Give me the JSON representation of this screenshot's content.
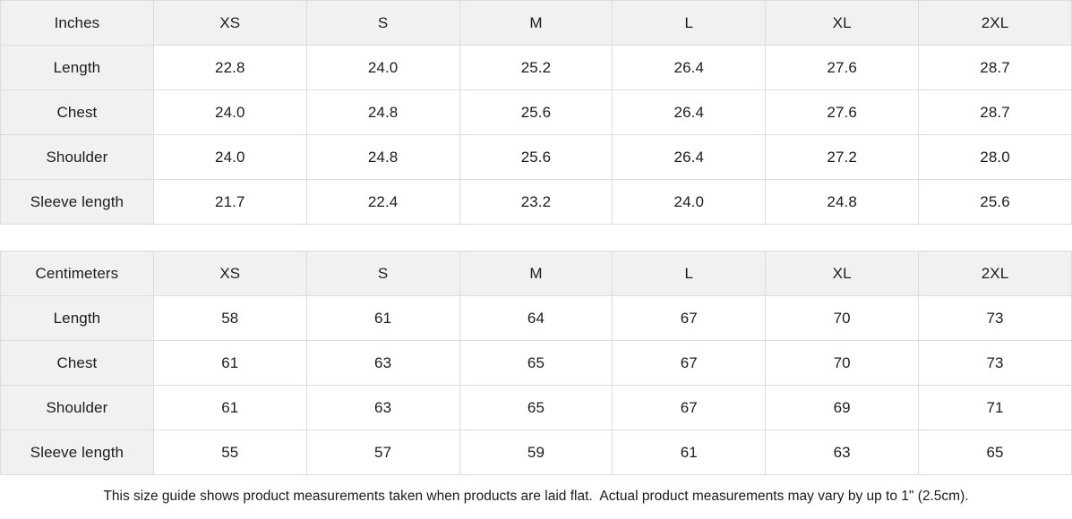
{
  "theme": {
    "header_background": "#f1f1f1",
    "cell_background": "#ffffff",
    "border_color": "#dcdcdc",
    "text_color": "#1c1c1c"
  },
  "size_guide": {
    "tables": [
      {
        "unit_label": "Inches",
        "columns": [
          "XS",
          "S",
          "M",
          "L",
          "XL",
          "2XL"
        ],
        "rows": [
          {
            "label": "Length",
            "values": [
              "22.8",
              "24.0",
              "25.2",
              "26.4",
              "27.6",
              "28.7"
            ]
          },
          {
            "label": "Chest",
            "values": [
              "24.0",
              "24.8",
              "25.6",
              "26.4",
              "27.6",
              "28.7"
            ]
          },
          {
            "label": "Shoulder",
            "values": [
              "24.0",
              "24.8",
              "25.6",
              "26.4",
              "27.2",
              "28.0"
            ]
          },
          {
            "label": "Sleeve length",
            "values": [
              "21.7",
              "22.4",
              "23.2",
              "24.0",
              "24.8",
              "25.6"
            ]
          }
        ]
      },
      {
        "unit_label": "Centimeters",
        "columns": [
          "XS",
          "S",
          "M",
          "L",
          "XL",
          "2XL"
        ],
        "rows": [
          {
            "label": "Length",
            "values": [
              "58",
              "61",
              "64",
              "67",
              "70",
              "73"
            ]
          },
          {
            "label": "Chest",
            "values": [
              "61",
              "63",
              "65",
              "67",
              "70",
              "73"
            ]
          },
          {
            "label": "Shoulder",
            "values": [
              "61",
              "63",
              "65",
              "67",
              "69",
              "71"
            ]
          },
          {
            "label": "Sleeve length",
            "values": [
              "55",
              "57",
              "59",
              "61",
              "63",
              "65"
            ]
          }
        ]
      }
    ],
    "footnote": "This size guide shows product measurements taken when products are laid flat.  Actual product measurements may vary by up to 1\" (2.5cm)."
  }
}
